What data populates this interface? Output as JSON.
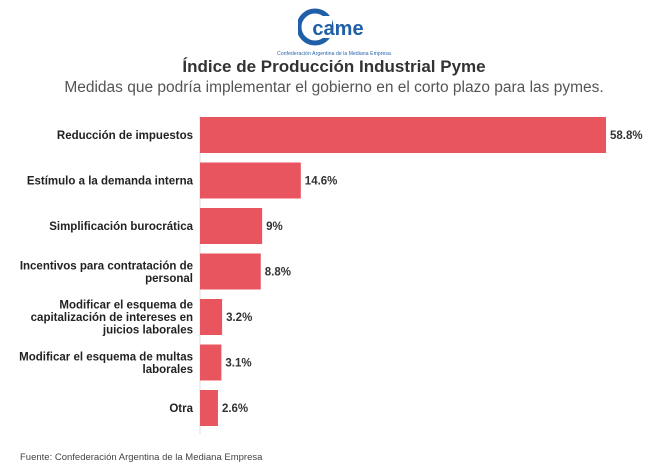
{
  "logo": {
    "text": "came",
    "subtext": "Confederación Argentina de la Mediana Empresa",
    "color": "#1f5fa8"
  },
  "chart_data": {
    "type": "bar",
    "orientation": "horizontal",
    "title": "Índice de Producción Industrial Pyme",
    "subtitle": "Medidas que podría implementar el gobierno en el corto plazo para las pymes.",
    "categories": [
      [
        "Reducción de impuestos"
      ],
      [
        "Estímulo a la demanda interna"
      ],
      [
        "Simplificación burocrática"
      ],
      [
        "Incentivos para contratación de",
        "personal"
      ],
      [
        "Modificar el esquema de",
        "capitalización de intereses en",
        "juicios laborales"
      ],
      [
        "Modificar el esquema de multas",
        "laborales"
      ],
      [
        "Otra"
      ]
    ],
    "values": [
      58.8,
      14.6,
      9,
      8.8,
      3.2,
      3.1,
      2.6
    ],
    "value_labels": [
      "58.8%",
      "14.6%",
      "9%",
      "8.8%",
      "3.2%",
      "3.1%",
      "2.6%"
    ],
    "xlim": [
      0,
      58.8
    ],
    "bar_color": "#e8555e",
    "grid": false,
    "legend": "none"
  },
  "source": "Fuente: Confederación Argentina de la Mediana Empresa"
}
